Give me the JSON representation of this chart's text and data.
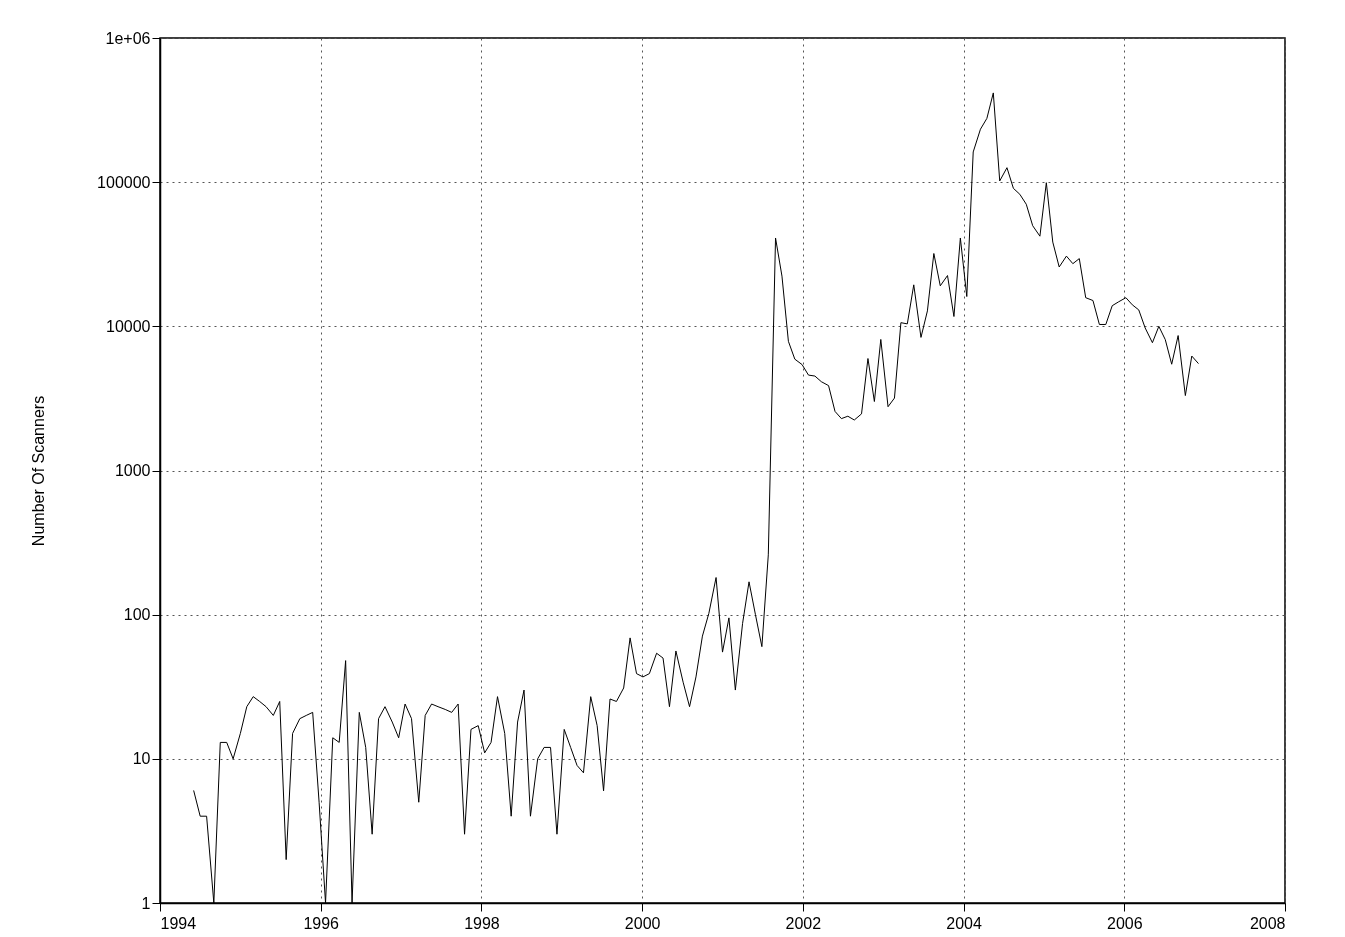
{
  "chart_data": {
    "type": "line",
    "ylabel": "Number Of Scanners",
    "log": "y",
    "grid": true,
    "line_style": "solid",
    "xlim": [
      1994,
      2008
    ],
    "xticks": [
      1994,
      1996,
      1998,
      2000,
      2002,
      2004,
      2006,
      2008
    ],
    "ylim": [
      1,
      1000000
    ],
    "yticks": [
      1,
      10,
      100,
      1000,
      10000,
      100000,
      {
        "value": 1000000,
        "label": "1e+06"
      }
    ],
    "series": [
      {
        "color": "#000000",
        "x": [
          1994.42,
          1994.5,
          1994.58,
          1994.67,
          1994.75,
          1994.83,
          1994.91,
          1995.0,
          1995.08,
          1995.16,
          1995.24,
          1995.32,
          1995.41,
          1995.49,
          1995.57,
          1995.65,
          1995.74,
          1995.82,
          1995.9,
          1995.98,
          1996.06,
          1996.15,
          1996.23,
          1996.31,
          1996.39,
          1996.48,
          1996.56,
          1996.64,
          1996.72,
          1996.8,
          1996.89,
          1996.97,
          1997.05,
          1997.13,
          1997.22,
          1997.3,
          1997.38,
          1997.46,
          1997.55,
          1997.63,
          1997.71,
          1997.79,
          1997.87,
          1997.96,
          1998.04,
          1998.12,
          1998.2,
          1998.29,
          1998.37,
          1998.45,
          1998.53,
          1998.61,
          1998.7,
          1998.78,
          1998.86,
          1998.94,
          1999.03,
          1999.11,
          1999.19,
          1999.27,
          1999.36,
          1999.44,
          1999.52,
          1999.6,
          1999.68,
          1999.77,
          1999.85,
          1999.93,
          2000.01,
          2000.09,
          2000.18,
          2000.26,
          2000.34,
          2000.42,
          2000.51,
          2000.59,
          2000.67,
          2000.75,
          2000.83,
          2000.92,
          2001.0,
          2001.08,
          2001.16,
          2001.25,
          2001.33,
          2001.41,
          2001.49,
          2001.57,
          2001.66,
          2001.74,
          2001.82,
          2001.9,
          2001.99,
          2002.07,
          2002.15,
          2002.23,
          2002.32,
          2002.4,
          2002.48,
          2002.56,
          2002.64,
          2002.73,
          2002.81,
          2002.89,
          2002.97,
          2003.06,
          2003.14,
          2003.22,
          2003.3,
          2003.38,
          2003.47,
          2003.55,
          2003.63,
          2003.71,
          2003.8,
          2003.88,
          2003.96,
          2004.04,
          2004.12,
          2004.21,
          2004.29,
          2004.37,
          2004.45,
          2004.54,
          2004.62,
          2004.7,
          2004.78,
          2004.86,
          2004.95,
          2005.03,
          2005.11,
          2005.19,
          2005.28,
          2005.36,
          2005.44,
          2005.52,
          2005.61,
          2005.69,
          2005.77,
          2005.85,
          2005.93,
          2006.02,
          2006.1,
          2006.18,
          2006.26,
          2006.35,
          2006.43,
          2006.51,
          2006.59,
          2006.67,
          2006.76,
          2006.84,
          2006.92
        ],
        "values": [
          6,
          4,
          4,
          1,
          13,
          13,
          10,
          15,
          23,
          27,
          25,
          23,
          20,
          25,
          2,
          15,
          19,
          20,
          21,
          5,
          1,
          14,
          13,
          48,
          1,
          21,
          12,
          3,
          19,
          23,
          18,
          14,
          24,
          19,
          5,
          20,
          24,
          23,
          22,
          21,
          24,
          3,
          16,
          17,
          11,
          13,
          27,
          15,
          4,
          18,
          30,
          4,
          10,
          12,
          12,
          3,
          16,
          12,
          9,
          8,
          27,
          17,
          6,
          26,
          25,
          31,
          69,
          39,
          37,
          39,
          54,
          50,
          23,
          56,
          34,
          23,
          37,
          71,
          102,
          181,
          55,
          95,
          30,
          87,
          169,
          100,
          60,
          260,
          41000,
          22300,
          7870,
          5920,
          5430,
          4590,
          4520,
          4130,
          3880,
          2570,
          2290,
          2380,
          2240,
          2470,
          5980,
          3010,
          8110,
          2770,
          3180,
          10600,
          10400,
          19400,
          8380,
          12800,
          32000,
          19100,
          22500,
          11700,
          41000,
          16100,
          162000,
          233000,
          277000,
          416000,
          102000,
          126000,
          90600,
          82400,
          70300,
          49900,
          42200,
          99100,
          38400,
          25800,
          30700,
          27200,
          29500,
          15800,
          15100,
          10300,
          10300,
          13900,
          14800,
          15800,
          14100,
          13000,
          9740,
          7700,
          10000,
          8090,
          5460,
          8630,
          3310,
          6220,
          5540
        ]
      }
    ]
  }
}
